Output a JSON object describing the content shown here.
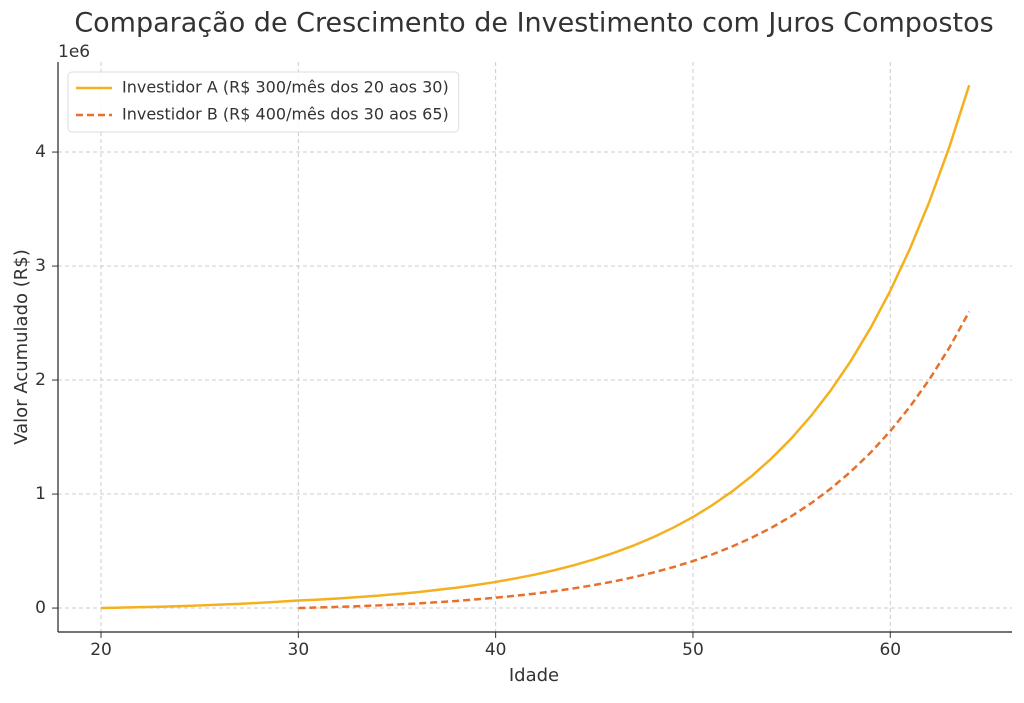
{
  "chart_data": {
    "type": "line",
    "title": "Comparação de Crescimento de Investimento com Juros Compostos",
    "x_label": "Idade",
    "y_label": "Valor Acumulado (R$)",
    "y_offset_label": "1e6",
    "x": [
      20,
      21,
      22,
      23,
      24,
      25,
      26,
      27,
      28,
      29,
      30,
      31,
      32,
      33,
      34,
      35,
      36,
      37,
      38,
      39,
      40,
      41,
      42,
      43,
      44,
      45,
      46,
      47,
      48,
      49,
      50,
      51,
      52,
      53,
      54,
      55,
      56,
      57,
      58,
      59,
      60,
      61,
      62,
      63,
      64
    ],
    "series": [
      {
        "name": "Investidor A (R$ 300/mês dos 20 aos 30)",
        "color": "#f5b01f",
        "linestyle": "solid",
        "values": [
          0,
          0.004,
          0.008,
          0.012,
          0.017,
          0.023,
          0.03,
          0.037,
          0.046,
          0.055,
          0.066,
          0.074,
          0.084,
          0.096,
          0.108,
          0.123,
          0.139,
          0.158,
          0.178,
          0.202,
          0.229,
          0.26,
          0.294,
          0.333,
          0.377,
          0.428,
          0.485,
          0.549,
          0.622,
          0.705,
          0.798,
          0.905,
          1.025,
          1.161,
          1.316,
          1.491,
          1.689,
          1.913,
          2.168,
          2.456,
          2.783,
          3.153,
          3.572,
          4.047,
          4.586
        ]
      },
      {
        "name": "Investidor B (R$ 400/mês dos 30 aos 65)",
        "color": "#e8702a",
        "linestyle": "dashed",
        "values": [
          null,
          null,
          null,
          null,
          null,
          null,
          null,
          null,
          null,
          null,
          0,
          0.005,
          0.01,
          0.016,
          0.023,
          0.031,
          0.04,
          0.051,
          0.062,
          0.076,
          0.091,
          0.108,
          0.127,
          0.149,
          0.174,
          0.202,
          0.234,
          0.271,
          0.312,
          0.359,
          0.412,
          0.472,
          0.541,
          0.619,
          0.707,
          0.807,
          0.921,
          1.05,
          1.197,
          1.363,
          1.552,
          1.767,
          2.01,
          2.286,
          2.6
        ]
      }
    ],
    "xlim": [
      17.82,
      66.17
    ],
    "ylim": [
      -0.21,
      4.79
    ],
    "xticks": [
      20,
      30,
      40,
      50,
      60
    ],
    "yticks": [
      0,
      1,
      2,
      3,
      4
    ],
    "grid": true,
    "legend": "upper left"
  }
}
